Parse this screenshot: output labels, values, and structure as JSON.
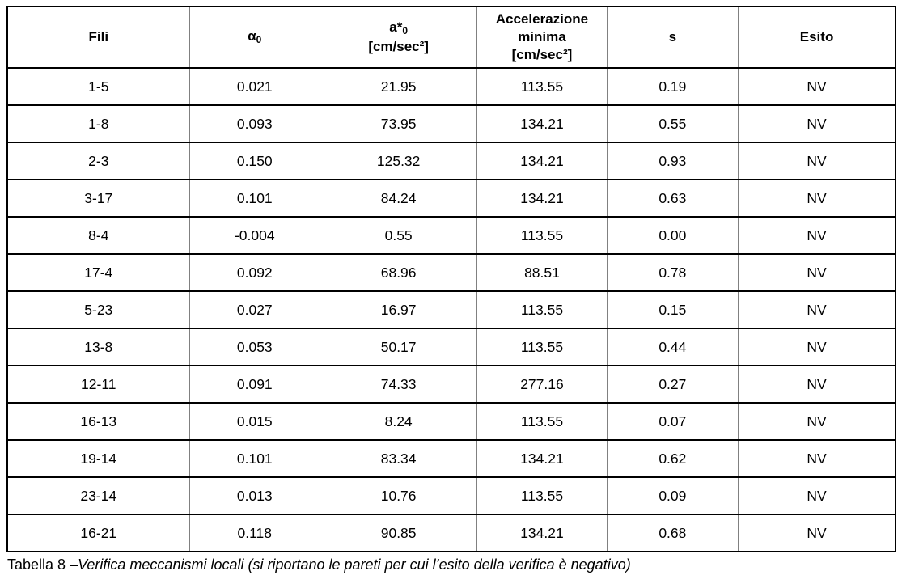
{
  "table": {
    "header": {
      "fili": "Fili",
      "alpha": "α",
      "alpha_sub": "0",
      "a_star": "a*",
      "a_star_sub": "0",
      "a_star_unit": "[cm/sec²]",
      "accel_line1": "Accelerazione",
      "accel_line2": "minima",
      "accel_unit": "[cm/sec²]",
      "s": "s",
      "esito": "Esito"
    },
    "rows": [
      [
        "1-5",
        "0.021",
        "21.95",
        "113.55",
        "0.19",
        "NV"
      ],
      [
        "1-8",
        "0.093",
        "73.95",
        "134.21",
        "0.55",
        "NV"
      ],
      [
        "2-3",
        "0.150",
        "125.32",
        "134.21",
        "0.93",
        "NV"
      ],
      [
        "3-17",
        "0.101",
        "84.24",
        "134.21",
        "0.63",
        "NV"
      ],
      [
        "8-4",
        "-0.004",
        "0.55",
        "113.55",
        "0.00",
        "NV"
      ],
      [
        "17-4",
        "0.092",
        "68.96",
        "88.51",
        "0.78",
        "NV"
      ],
      [
        "5-23",
        "0.027",
        "16.97",
        "113.55",
        "0.15",
        "NV"
      ],
      [
        "13-8",
        "0.053",
        "50.17",
        "113.55",
        "0.44",
        "NV"
      ],
      [
        "12-11",
        "0.091",
        "74.33",
        "277.16",
        "0.27",
        "NV"
      ],
      [
        "16-13",
        "0.015",
        "8.24",
        "113.55",
        "0.07",
        "NV"
      ],
      [
        "19-14",
        "0.101",
        "83.34",
        "134.21",
        "0.62",
        "NV"
      ],
      [
        "23-14",
        "0.013",
        "10.76",
        "113.55",
        "0.09",
        "NV"
      ],
      [
        "16-21",
        "0.118",
        "90.85",
        "134.21",
        "0.68",
        "NV"
      ]
    ]
  },
  "caption": {
    "prefix": "Tabella 8 –",
    "italic": "Verifica meccanismi locali (si riportano le pareti per cui l’esito della verifica è negativo)"
  },
  "colors": {
    "border_outer": "#000000",
    "border_horizontal": "#000000",
    "border_vertical": "#808080",
    "text": "#000000",
    "background": "#ffffff"
  }
}
